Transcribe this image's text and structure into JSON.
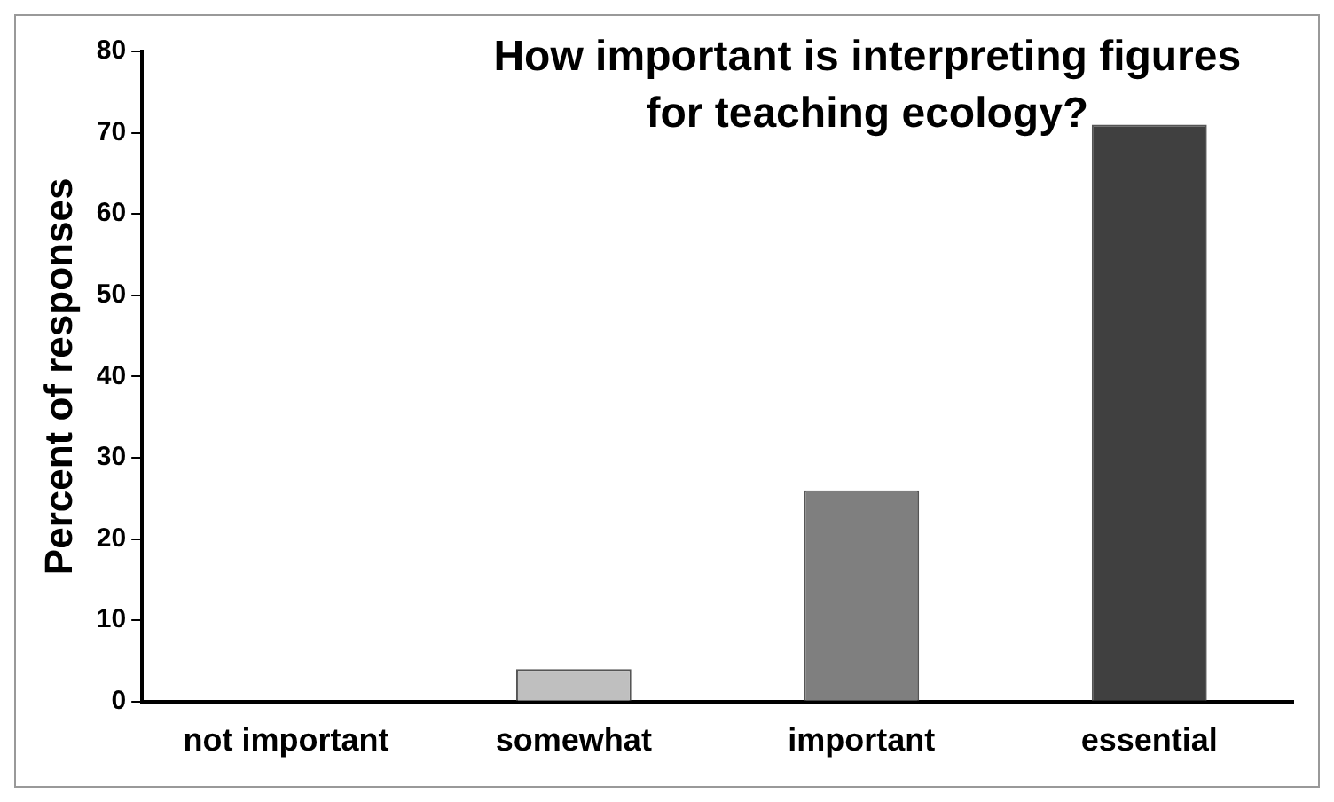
{
  "chart_data": {
    "type": "bar",
    "title": "How important is interpreting figures for teaching ecology?",
    "ylabel": "Percent of responses",
    "categories": [
      "not important",
      "somewhat",
      "important",
      "essential"
    ],
    "values": [
      0,
      4,
      26,
      71
    ],
    "colors": [
      "#d9d9d9",
      "#bfbfbf",
      "#7f7f7f",
      "#404040"
    ],
    "ylim": [
      0,
      80
    ],
    "yticks": [
      0,
      10,
      20,
      30,
      40,
      50,
      60,
      70,
      80
    ],
    "grid": false,
    "legend": false
  }
}
